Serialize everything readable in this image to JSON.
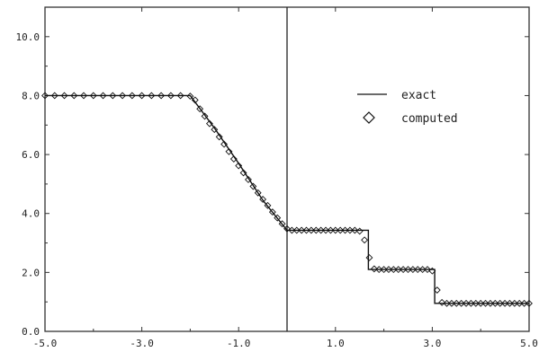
{
  "chart_data": {
    "type": "line",
    "title": "",
    "xlabel": "",
    "ylabel": "",
    "xlim": [
      -5.0,
      5.0
    ],
    "ylim": [
      0.0,
      11.0
    ],
    "x_ticks": [
      -5.0,
      -3.0,
      -1.0,
      1.0,
      3.0,
      5.0
    ],
    "x_tick_labels": [
      "-5.0",
      "-3.0",
      "-1.0",
      "1.0",
      "3.0",
      "5.0"
    ],
    "y_ticks": [
      0.0,
      2.0,
      4.0,
      6.0,
      8.0,
      10.0
    ],
    "y_tick_labels": [
      "0.0",
      "2.0",
      "4.0",
      "6.0",
      "8.0",
      "10.0"
    ],
    "grid": false,
    "vertical_line_x": 0.0,
    "legend": {
      "position": "right",
      "entries": [
        "exact",
        "computed"
      ]
    },
    "colors": {
      "line": "#111111",
      "axis": "#333333",
      "marker": "#111111"
    },
    "series": [
      {
        "name": "exact",
        "style": "solid line",
        "x": [
          -5.0,
          -2.0,
          -1.5,
          -1.0,
          -0.5,
          0.0,
          1.68,
          1.68,
          3.05,
          3.05,
          5.0
        ],
        "y": [
          8.0,
          8.0,
          6.9,
          5.7,
          4.45,
          3.43,
          3.43,
          2.1,
          2.1,
          0.95,
          0.95
        ]
      },
      {
        "name": "computed",
        "style": "diamond markers",
        "x": [
          -5.0,
          -4.8,
          -4.6,
          -4.4,
          -4.2,
          -4.0,
          -3.8,
          -3.6,
          -3.4,
          -3.2,
          -3.0,
          -2.8,
          -2.6,
          -2.4,
          -2.2,
          -2.0,
          -1.9,
          -1.8,
          -1.7,
          -1.6,
          -1.5,
          -1.4,
          -1.3,
          -1.2,
          -1.1,
          -1.0,
          -0.9,
          -0.8,
          -0.7,
          -0.6,
          -0.5,
          -0.4,
          -0.3,
          -0.2,
          -0.1,
          0.0,
          0.1,
          0.2,
          0.3,
          0.4,
          0.5,
          0.6,
          0.7,
          0.8,
          0.9,
          1.0,
          1.1,
          1.2,
          1.3,
          1.4,
          1.5,
          1.6,
          1.7,
          1.8,
          1.9,
          2.0,
          2.1,
          2.2,
          2.3,
          2.4,
          2.5,
          2.6,
          2.7,
          2.8,
          2.9,
          3.0,
          3.1,
          3.2,
          3.3,
          3.4,
          3.5,
          3.6,
          3.7,
          3.8,
          3.9,
          4.0,
          4.1,
          4.2,
          4.3,
          4.4,
          4.5,
          4.6,
          4.7,
          4.8,
          4.9,
          5.0
        ],
        "y": [
          8.0,
          8.0,
          8.0,
          8.0,
          8.0,
          8.0,
          8.0,
          8.0,
          8.0,
          8.0,
          8.0,
          8.0,
          8.0,
          8.0,
          8.0,
          7.98,
          7.85,
          7.55,
          7.3,
          7.05,
          6.85,
          6.6,
          6.35,
          6.1,
          5.85,
          5.62,
          5.38,
          5.15,
          4.92,
          4.7,
          4.48,
          4.27,
          4.05,
          3.85,
          3.65,
          3.48,
          3.43,
          3.43,
          3.43,
          3.43,
          3.43,
          3.43,
          3.43,
          3.43,
          3.43,
          3.43,
          3.43,
          3.43,
          3.43,
          3.43,
          3.4,
          3.1,
          2.5,
          2.12,
          2.1,
          2.1,
          2.1,
          2.1,
          2.1,
          2.1,
          2.1,
          2.1,
          2.1,
          2.1,
          2.1,
          2.05,
          1.4,
          0.98,
          0.95,
          0.95,
          0.95,
          0.95,
          0.95,
          0.95,
          0.95,
          0.95,
          0.95,
          0.95,
          0.95,
          0.95,
          0.95,
          0.95,
          0.95,
          0.95,
          0.95,
          0.95
        ]
      }
    ]
  }
}
